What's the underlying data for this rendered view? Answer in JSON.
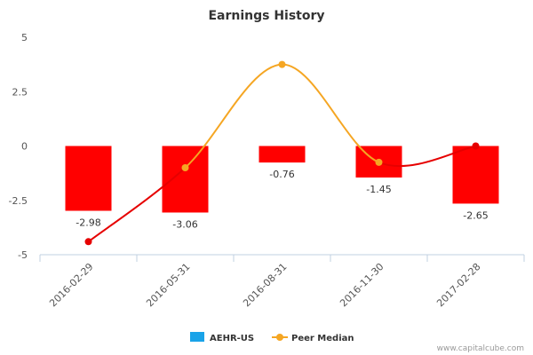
{
  "chart_data": {
    "type": "bar",
    "title": "Earnings History",
    "categories": [
      "2016-02-29",
      "2016-05-31",
      "2016-08-31",
      "2016-11-30",
      "2017-02-28"
    ],
    "yticks": [
      "5",
      "2.5",
      "0",
      "-2.5",
      "-5"
    ],
    "ylim": [
      -5,
      5
    ],
    "grid": false,
    "legend_position": "bottom-center",
    "series": [
      {
        "name": "AEHR-US",
        "kind": "bar",
        "legend_color": "#1aa3e8",
        "bar_color": "#ff0000",
        "values": [
          -2.98,
          -3.06,
          -0.76,
          -1.45,
          -2.65
        ],
        "labels": [
          "-2.98",
          "-3.06",
          "-0.76",
          "-1.45",
          "-2.65"
        ]
      },
      {
        "name": "Peer Median",
        "kind": "line",
        "legend_color": "#f5a623",
        "values": [
          -4.4,
          -1.0,
          3.75,
          -0.75,
          0.0
        ],
        "segment_colors": [
          "#e60000",
          "#f5a623",
          "#f5a623",
          "#e60000"
        ],
        "marker_colors": [
          "#e60000",
          "#f5a623",
          "#f5a623",
          "#f5a623",
          "#e60000"
        ]
      }
    ]
  },
  "credit": "www.capitalcube.com"
}
